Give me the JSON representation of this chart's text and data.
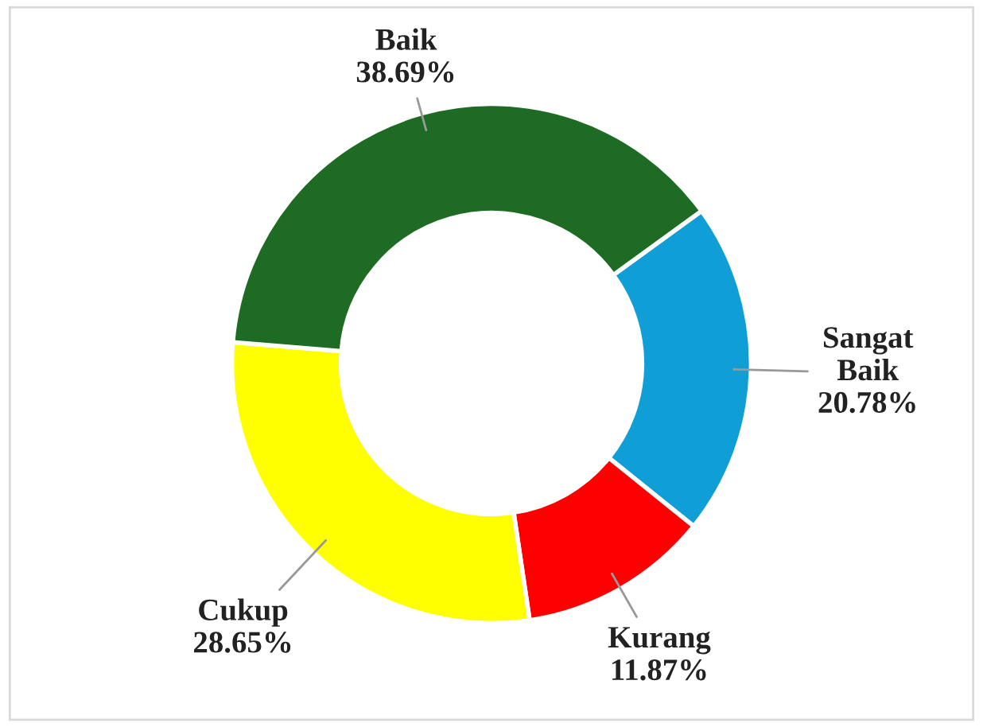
{
  "chart_data": {
    "type": "donut",
    "categories": [
      "Sangat Baik",
      "Kurang",
      "Cukup",
      "Baik"
    ],
    "values": [
      20.78,
      11.87,
      28.65,
      38.69
    ],
    "colors": [
      "#0f9ed5",
      "#ff0000",
      "#ffff00",
      "#1e6b23"
    ],
    "value_labels": [
      "20.78%",
      "11.87%",
      "28.65%",
      "38.69%"
    ]
  }
}
